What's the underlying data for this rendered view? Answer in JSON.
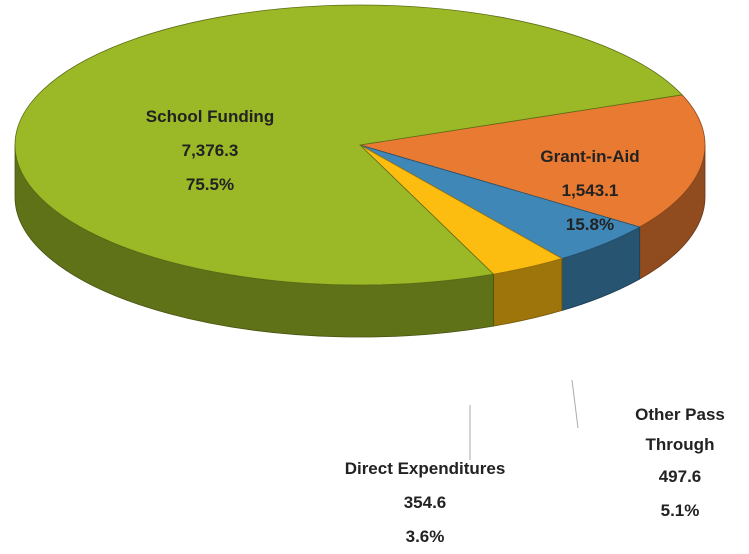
{
  "chart_data": {
    "type": "pie3d",
    "categories": [
      "Grant-in-Aid",
      "Other Pass Through",
      "Direct Expenditures",
      "School Funding"
    ],
    "values": [
      1543.1,
      497.6,
      354.6,
      7376.3
    ],
    "value_labels": [
      "1,543.1",
      "497.6",
      "354.6",
      "7,376.3"
    ],
    "percents": [
      15.8,
      5.1,
      3.6,
      75.5
    ],
    "percent_labels": [
      "15.8%",
      "5.1%",
      "3.6%",
      "75.5%"
    ],
    "colors": [
      "#e97a32",
      "#3f87b7",
      "#fdbd10",
      "#9bb826"
    ]
  }
}
